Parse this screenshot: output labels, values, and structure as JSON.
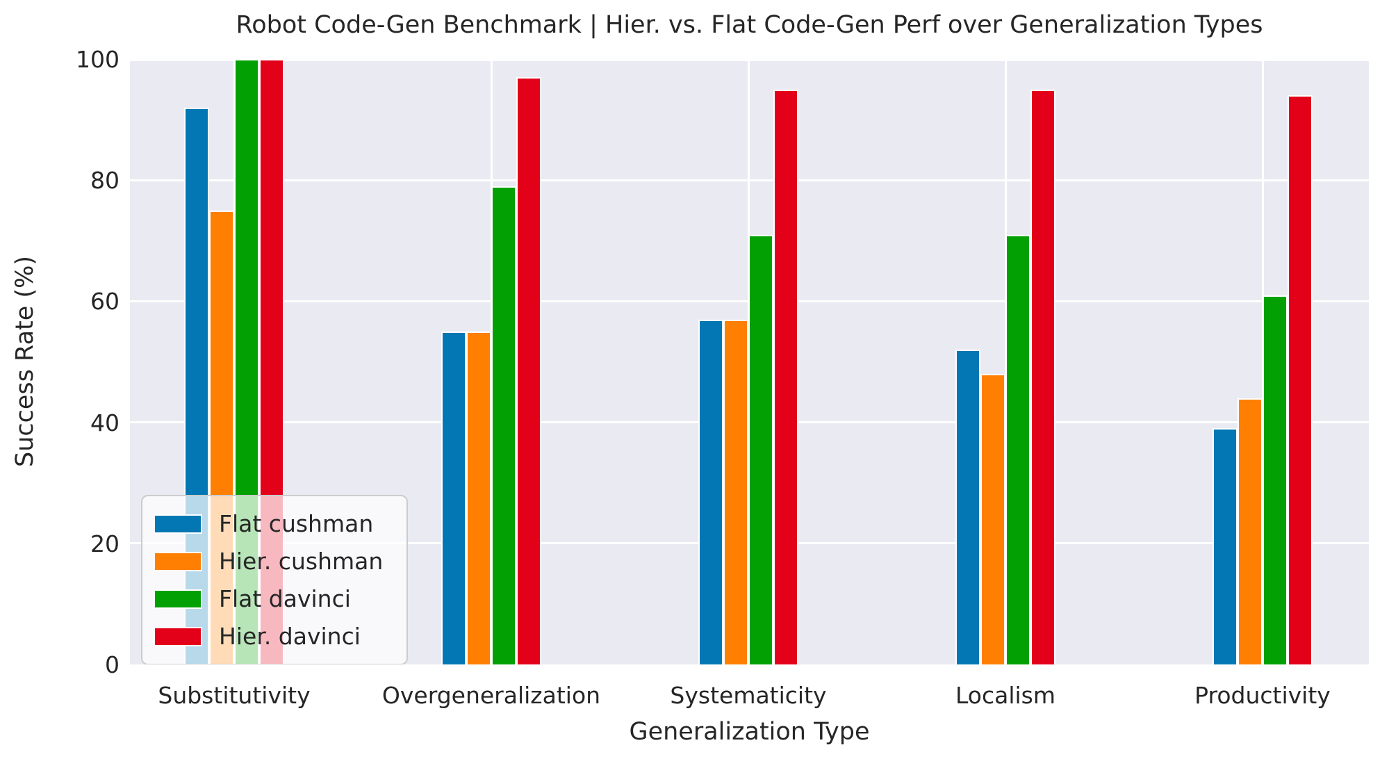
{
  "figure": {
    "title": "Robot Code-Gen Benchmark | Hier. vs. Flat Code-Gen Perf over Generalization Types"
  },
  "chart_data": {
    "type": "bar",
    "title": "Robot Code-Gen Benchmark | Hier. vs. Flat Code-Gen Perf over Generalization Types",
    "xlabel": "Generalization Type",
    "ylabel": "Success Rate (%)",
    "categories": [
      "Substitutivity",
      "Overgeneralization",
      "Systematicity",
      "Localism",
      "Productivity"
    ],
    "series": [
      {
        "name": "Flat cushman",
        "color": "#0277b4",
        "values": [
          92,
          55,
          57,
          52,
          39
        ]
      },
      {
        "name": "Hier. cushman",
        "color": "#ff7f02",
        "values": [
          75,
          55,
          57,
          48,
          44
        ]
      },
      {
        "name": "Flat davinci",
        "color": "#03a003",
        "values": [
          100,
          79,
          71,
          71,
          61
        ]
      },
      {
        "name": "Hier. davinci",
        "color": "#e30019",
        "values": [
          100,
          97,
          95,
          95,
          94
        ]
      }
    ],
    "ylim": [
      0,
      100
    ],
    "yticks": [
      0,
      20,
      40,
      60,
      80,
      100
    ],
    "grid": true,
    "plot_background": "#eaeaf2",
    "grid_color": "#ffffff",
    "text_color": "#262626",
    "legend_position": "lower left"
  }
}
